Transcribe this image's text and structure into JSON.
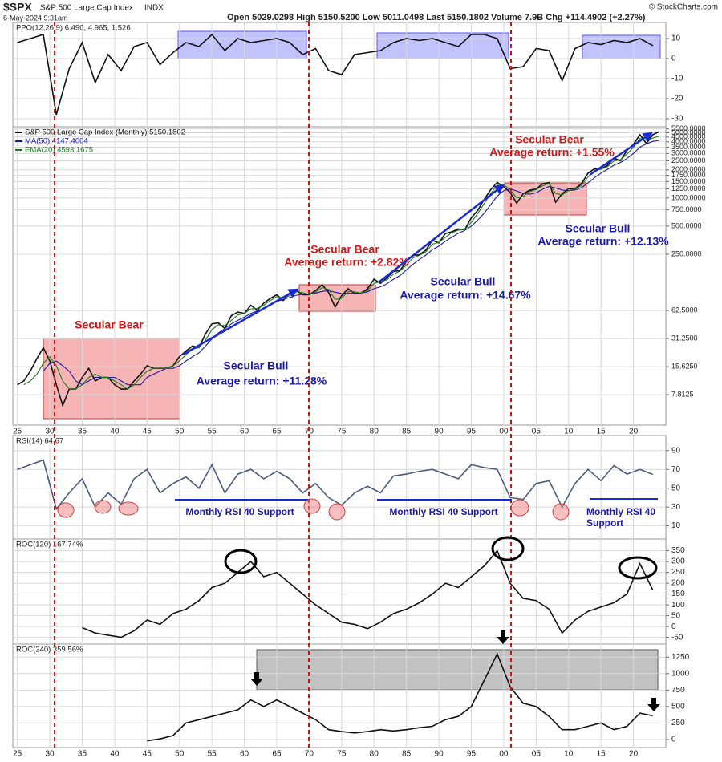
{
  "header": {
    "symbol": "$SPX",
    "name": "S&P 500 Large Cap Index",
    "exchange": "INDX",
    "date": "6-May-2024 9:31am",
    "quote": "Open 5029.0298 High 5150.5200 Low 5011.0498 Last 5150.1802 Volume 7.9B Chg +114.4902 (+2.27%)",
    "copyright": "© StockCharts.com"
  },
  "chart_data": [
    {
      "type": "line",
      "title": "PPO(12,26,9) 6.490, 4.965, 1.526",
      "x": [
        1925,
        1927,
        1929,
        1931,
        1933,
        1935,
        1937,
        1939,
        1941,
        1943,
        1945,
        1947,
        1949,
        1951,
        1953,
        1955,
        1957,
        1959,
        1961,
        1963,
        1965,
        1967,
        1969,
        1971,
        1973,
        1975,
        1977,
        1979,
        1981,
        1983,
        1985,
        1987,
        1989,
        1991,
        1993,
        1995,
        1997,
        1999,
        2001,
        2003,
        2005,
        2007,
        2009,
        2011,
        2013,
        2015,
        2017,
        2019,
        2021,
        2023
      ],
      "series": [
        {
          "color": "#111111",
          "values": [
            8,
            10,
            12,
            -28,
            -5,
            8,
            -12,
            2,
            -6,
            6,
            8,
            -3,
            3,
            8,
            6,
            12,
            4,
            10,
            8,
            9,
            10,
            8,
            2,
            5,
            -6,
            -8,
            2,
            3,
            4,
            8,
            10,
            9,
            10,
            8,
            6,
            12,
            12,
            10,
            -5,
            -4,
            5,
            4,
            -11,
            5,
            8,
            7,
            9,
            8,
            10,
            6.49
          ]
        }
      ],
      "xlim": [
        1924.3,
        2025
      ],
      "ylim": [
        -34,
        18
      ],
      "yticks": [
        10,
        0,
        -10,
        -20,
        -30
      ]
    },
    {
      "type": "line",
      "log": true,
      "x": [
        1925,
        1926,
        1927,
        1928,
        1929,
        1930,
        1931,
        1932,
        1933,
        1934,
        1935,
        1936,
        1937,
        1938,
        1939,
        1940,
        1941,
        1942,
        1943,
        1944,
        1945,
        1946,
        1947,
        1948,
        1949,
        1950,
        1951,
        1952,
        1953,
        1954,
        1955,
        1956,
        1957,
        1958,
        1959,
        1960,
        1961,
        1962,
        1963,
        1964,
        1965,
        1966,
        1967,
        1968,
        1969,
        1970,
        1971,
        1972,
        1973,
        1974,
        1975,
        1976,
        1977,
        1978,
        1979,
        1980,
        1981,
        1982,
        1983,
        1984,
        1985,
        1986,
        1987,
        1988,
        1989,
        1990,
        1991,
        1992,
        1993,
        1994,
        1995,
        1996,
        1997,
        1998,
        1999,
        2000,
        2001,
        2002,
        2003,
        2004,
        2005,
        2006,
        2007,
        2008,
        2009,
        2010,
        2011,
        2012,
        2013,
        2014,
        2015,
        2016,
        2017,
        2018,
        2019,
        2020,
        2021,
        2022,
        2023,
        2024
      ],
      "series": [
        {
          "name": "S&P 500 Large Cap Index (Monthly) 5150.1802",
          "color": "#111111",
          "values": [
            10,
            11,
            14,
            19,
            25,
            18,
            10,
            6,
            9,
            9,
            12,
            15,
            11,
            12,
            12,
            10,
            9,
            9,
            11,
            13,
            16,
            15,
            15,
            15,
            16,
            20,
            23,
            26,
            25,
            35,
            45,
            46,
            40,
            55,
            60,
            58,
            71,
            63,
            75,
            84,
            92,
            80,
            96,
            103,
            92,
            92,
            102,
            118,
            97,
            68,
            90,
            107,
            95,
            96,
            107,
            135,
            122,
            140,
            164,
            167,
            211,
            242,
            247,
            277,
            353,
            330,
            417,
            435,
            466,
            459,
            615,
            740,
            970,
            1229,
            1469,
            1320,
            1148,
            880,
            1111,
            1211,
            1248,
            1418,
            1468,
            903,
            1115,
            1257,
            1257,
            1426,
            1848,
            2058,
            2043,
            2238,
            2673,
            2506,
            3230,
            3756,
            4766,
            3839,
            4769,
            5150
          ]
        },
        {
          "name": "MA(50) 4147.4004",
          "color": "#1a1aa6",
          "values": [
            null,
            null,
            null,
            null,
            14,
            17,
            18,
            16,
            14,
            11,
            10,
            11,
            12,
            12,
            12,
            12,
            11,
            10,
            10,
            10,
            12,
            13,
            14,
            15,
            15,
            16,
            18,
            20,
            22,
            26,
            31,
            36,
            40,
            45,
            49,
            53,
            58,
            62,
            66,
            72,
            78,
            82,
            86,
            91,
            93,
            94,
            96,
            100,
            102,
            98,
            95,
            96,
            95,
            96,
            99,
            107,
            112,
            121,
            135,
            148,
            170,
            195,
            220,
            245,
            280,
            305,
            345,
            380,
            420,
            450,
            500,
            580,
            690,
            850,
            1050,
            1200,
            1250,
            1190,
            1120,
            1100,
            1140,
            1240,
            1330,
            1280,
            1220,
            1200,
            1220,
            1290,
            1450,
            1650,
            1850,
            2030,
            2250,
            2400,
            2650,
            3000,
            3500,
            3800,
            4050,
            4147.4004
          ]
        },
        {
          "name": "EMA(20) 4593.1675",
          "color": "#1a7a1a",
          "values": [
            null,
            10,
            11,
            13,
            17,
            20,
            16,
            11,
            9,
            9,
            10,
            12,
            13,
            12,
            12,
            11,
            10,
            9,
            10,
            12,
            14,
            15,
            15,
            15,
            16,
            18,
            21,
            24,
            25,
            30,
            39,
            44,
            43,
            49,
            56,
            58,
            65,
            66,
            71,
            80,
            88,
            85,
            90,
            99,
            97,
            93,
            98,
            110,
            105,
            82,
            84,
            100,
            99,
            96,
            102,
            122,
            127,
            133,
            153,
            165,
            192,
            228,
            243,
            265,
            320,
            335,
            380,
            425,
            452,
            460,
            550,
            685,
            875,
            1120,
            1370,
            1380,
            1230,
            1000,
            1040,
            1170,
            1230,
            1350,
            1440,
            1120,
            1080,
            1200,
            1250,
            1360,
            1680,
            1960,
            2040,
            2160,
            2500,
            2570,
            2950,
            3500,
            4350,
            4150,
            4400,
            4593.1675
          ]
        }
      ],
      "xlim": [
        1924.3,
        2025
      ],
      "xticks": [
        {
          "value": 1925,
          "label": "25"
        },
        {
          "value": 1930,
          "label": "30"
        },
        {
          "value": 1935,
          "label": "35"
        },
        {
          "value": 1940,
          "label": "40"
        },
        {
          "value": 1945,
          "label": "45"
        },
        {
          "value": 1950,
          "label": "50"
        },
        {
          "value": 1955,
          "label": "55"
        },
        {
          "value": 1960,
          "label": "60"
        },
        {
          "value": 1965,
          "label": "65"
        },
        {
          "value": 1970,
          "label": "70"
        },
        {
          "value": 1975,
          "label": "75"
        },
        {
          "value": 1980,
          "label": "80"
        },
        {
          "value": 1985,
          "label": "85"
        },
        {
          "value": 1990,
          "label": "90"
        },
        {
          "value": 1995,
          "label": "95"
        },
        {
          "value": 2000,
          "label": "00"
        },
        {
          "value": 2005,
          "label": "05"
        },
        {
          "value": 2010,
          "label": "10"
        },
        {
          "value": 2015,
          "label": "15"
        },
        {
          "value": 2020,
          "label": "20"
        }
      ],
      "ylim": [
        3.7,
        5800
      ],
      "yticks": [
        {
          "value": 7.8125,
          "label": "7.8125"
        },
        {
          "value": 15.625,
          "label": "15.6250"
        },
        {
          "value": 31.25,
          "label": "31.2500"
        },
        {
          "value": 62.5,
          "label": "62.5000"
        },
        {
          "value": 250,
          "label": "250.0000"
        },
        {
          "value": 500,
          "label": "500.0000"
        },
        {
          "value": 750,
          "label": "750.0000"
        },
        {
          "value": 1000,
          "label": "1000.0000"
        },
        {
          "value": 1250,
          "label": "1250.0000"
        },
        {
          "value": 1500,
          "label": "1500.0000"
        },
        {
          "value": 1750,
          "label": "1750.0000"
        },
        {
          "value": 2000,
          "label": "2000.0000"
        },
        {
          "value": 2500,
          "label": "2500.0000"
        },
        {
          "value": 3000,
          "label": "3000.0000"
        },
        {
          "value": 3500,
          "label": "3500.0000"
        },
        {
          "value": 4000,
          "label": "4000.0000"
        },
        {
          "value": 4500,
          "label": "4500.0000"
        },
        {
          "value": 5000,
          "label": "5000.0000"
        },
        {
          "value": 5500,
          "label": "5500.0000"
        }
      ],
      "annotations": [
        "Secular Bear",
        "Secular Bull",
        "Average return: +11.28%",
        "Secular Bear",
        "Average return: +2.82%",
        "Secular Bull",
        "Average return: +14.67%",
        "Secular Bear",
        "Average return: +1.55%",
        "Secular Bull",
        "Average return: +12.13%"
      ]
    },
    {
      "type": "line",
      "title": "RSI(14) 64.67",
      "x": [
        1925,
        1927,
        1929,
        1931,
        1933,
        1935,
        1937,
        1939,
        1941,
        1943,
        1945,
        1947,
        1949,
        1951,
        1953,
        1955,
        1957,
        1959,
        1961,
        1963,
        1965,
        1967,
        1969,
        1971,
        1973,
        1975,
        1977,
        1979,
        1981,
        1983,
        1985,
        1987,
        1989,
        1991,
        1993,
        1995,
        1997,
        1999,
        2001,
        2003,
        2005,
        2007,
        2009,
        2011,
        2013,
        2015,
        2017,
        2019,
        2021,
        2023
      ],
      "series": [
        {
          "color": "#4a5a80",
          "values": [
            70,
            75,
            80,
            28,
            45,
            60,
            30,
            45,
            33,
            60,
            70,
            45,
            55,
            62,
            50,
            75,
            45,
            65,
            70,
            60,
            68,
            60,
            45,
            55,
            40,
            32,
            45,
            52,
            45,
            63,
            65,
            68,
            70,
            65,
            60,
            75,
            72,
            70,
            40,
            38,
            55,
            58,
            30,
            55,
            70,
            58,
            74,
            65,
            70,
            64.67
          ]
        }
      ],
      "xlim": [
        1924.3,
        2025
      ],
      "ylim": [
        -4,
        106
      ],
      "yticks": [
        90,
        70,
        50,
        30,
        10
      ],
      "annotations": [
        "Monthly RSI 40 Support",
        "Monthly RSI 40 Support",
        "Monthly RSI 40 Support"
      ]
    },
    {
      "type": "line",
      "title": "ROC(120) 167.74%",
      "x": [
        1925,
        1927,
        1929,
        1931,
        1933,
        1935,
        1937,
        1939,
        1941,
        1943,
        1945,
        1947,
        1949,
        1951,
        1953,
        1955,
        1957,
        1959,
        1961,
        1963,
        1965,
        1967,
        1969,
        1971,
        1973,
        1975,
        1977,
        1979,
        1981,
        1983,
        1985,
        1987,
        1989,
        1991,
        1993,
        1995,
        1997,
        1999,
        2001,
        2003,
        2005,
        2007,
        2009,
        2011,
        2013,
        2015,
        2017,
        2019,
        2021,
        2023
      ],
      "series": [
        {
          "color": "#111111",
          "values": [
            null,
            null,
            null,
            null,
            null,
            -5,
            -30,
            -40,
            -50,
            -20,
            30,
            10,
            60,
            80,
            120,
            180,
            200,
            250,
            300,
            230,
            250,
            200,
            150,
            100,
            60,
            20,
            10,
            -10,
            20,
            60,
            80,
            110,
            150,
            200,
            180,
            230,
            280,
            350,
            200,
            130,
            120,
            80,
            -30,
            30,
            70,
            90,
            110,
            150,
            290,
            167.74
          ]
        }
      ],
      "xlim": [
        1924.3,
        2025
      ],
      "ylim": [
        -81,
        404
      ],
      "yticks": [
        350,
        300,
        250,
        200,
        150,
        100,
        50,
        0,
        -50
      ]
    },
    {
      "type": "line",
      "title": "ROC(240) 359.56%",
      "x": [
        1925,
        1927,
        1929,
        1931,
        1933,
        1935,
        1937,
        1939,
        1941,
        1943,
        1945,
        1947,
        1949,
        1951,
        1953,
        1955,
        1957,
        1959,
        1961,
        1963,
        1965,
        1967,
        1969,
        1971,
        1973,
        1975,
        1977,
        1979,
        1981,
        1983,
        1985,
        1987,
        1989,
        1991,
        1993,
        1995,
        1997,
        1999,
        2001,
        2003,
        2005,
        2007,
        2009,
        2011,
        2013,
        2015,
        2017,
        2019,
        2021,
        2023
      ],
      "series": [
        {
          "color": "#111111",
          "values": [
            null,
            null,
            null,
            null,
            null,
            null,
            null,
            null,
            null,
            null,
            -20,
            10,
            60,
            250,
            300,
            350,
            400,
            450,
            600,
            500,
            600,
            500,
            400,
            300,
            150,
            120,
            100,
            120,
            150,
            130,
            150,
            180,
            200,
            300,
            350,
            500,
            900,
            1300,
            800,
            550,
            500,
            350,
            150,
            150,
            200,
            250,
            150,
            200,
            400,
            359.56
          ]
        }
      ],
      "xlim": [
        1924.3,
        2025
      ],
      "xticks": [
        {
          "value": 1925,
          "label": "25"
        },
        {
          "value": 1930,
          "label": "30"
        },
        {
          "value": 1935,
          "label": "35"
        },
        {
          "value": 1940,
          "label": "40"
        },
        {
          "value": 1945,
          "label": "45"
        },
        {
          "value": 1950,
          "label": "50"
        },
        {
          "value": 1955,
          "label": "55"
        },
        {
          "value": 1960,
          "label": "60"
        },
        {
          "value": 1965,
          "label": "65"
        },
        {
          "value": 1970,
          "label": "70"
        },
        {
          "value": 1975,
          "label": "75"
        },
        {
          "value": 1980,
          "label": "80"
        },
        {
          "value": 1985,
          "label": "85"
        },
        {
          "value": 1990,
          "label": "90"
        },
        {
          "value": 1995,
          "label": "95"
        },
        {
          "value": 2000,
          "label": "00"
        },
        {
          "value": 2005,
          "label": "05"
        },
        {
          "value": 2010,
          "label": "10"
        },
        {
          "value": 2015,
          "label": "15"
        },
        {
          "value": 2020,
          "label": "20"
        }
      ],
      "ylim": [
        -122,
        1448
      ],
      "yticks": [
        1250,
        1000,
        750,
        500,
        250,
        0
      ]
    }
  ]
}
